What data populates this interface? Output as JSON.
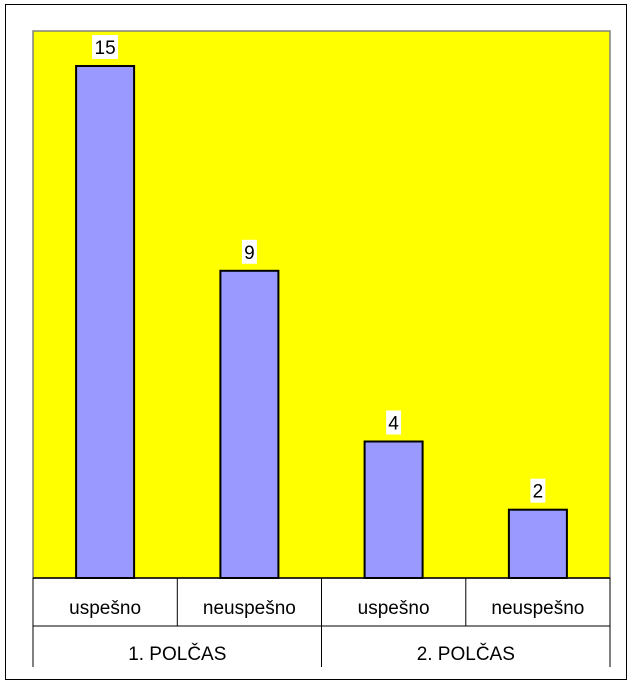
{
  "chart_data": {
    "type": "bar",
    "categories": [
      "uspešno",
      "neuspešno",
      "uspešno",
      "neuspešno"
    ],
    "groups": [
      {
        "label": "1. POLČAS",
        "categories": [
          "uspešno",
          "neuspešno"
        ]
      },
      {
        "label": "2. POLČAS",
        "categories": [
          "uspešno",
          "neuspešno"
        ]
      }
    ],
    "values": [
      15,
      9,
      4,
      2
    ],
    "data_labels": [
      "15",
      "9",
      "4",
      "2"
    ],
    "ylim": [
      0,
      16
    ],
    "grid": false,
    "legend": "none",
    "colors": {
      "plot_background": "#ffff00",
      "bar_fill": "#9999ff",
      "bar_stroke": "#000000",
      "plot_border": "#808080"
    }
  }
}
